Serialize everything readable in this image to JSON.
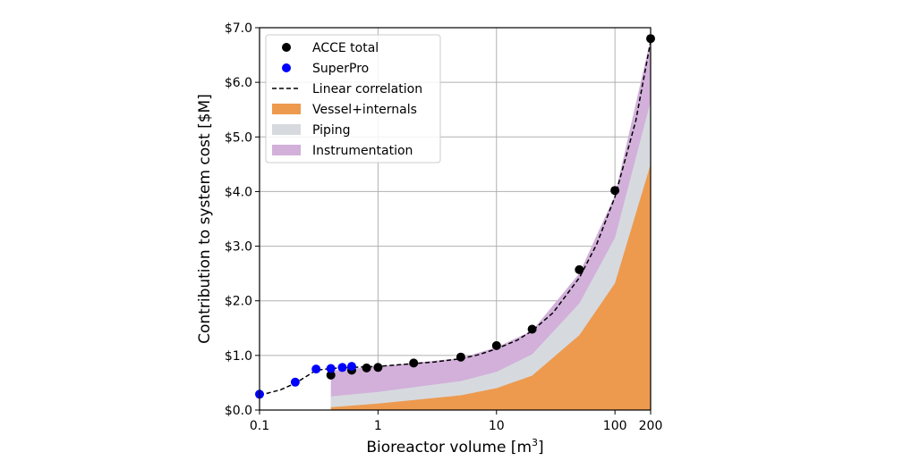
{
  "chart_data": {
    "type": "area",
    "xlabel": "Bioreactor volume [m",
    "xlabel_sup": "3",
    "xlabel_end": "]",
    "ylabel": "Contribution to system cost [$M]",
    "x_scale": "log",
    "xlim": [
      0.1,
      200
    ],
    "ylim": [
      0,
      7.0
    ],
    "x_ticks": [
      0.1,
      1,
      10,
      100,
      200
    ],
    "x_tick_labels": [
      "0.1",
      "1",
      "10",
      "100",
      "200"
    ],
    "y_ticks": [
      0,
      1,
      2,
      3,
      4,
      5,
      6,
      7
    ],
    "y_tick_labels": [
      "$0.0",
      "$1.0",
      "$2.0",
      "$3.0",
      "$4.0",
      "$5.0",
      "$6.0",
      "$7.0"
    ],
    "grid": true,
    "legend_position": "top-left",
    "series": [
      {
        "name": "ACCE total",
        "kind": "scatter",
        "color": "#000000",
        "points": [
          [
            0.4,
            0.64
          ],
          [
            0.6,
            0.73
          ],
          [
            0.8,
            0.77
          ],
          [
            1,
            0.78
          ],
          [
            2,
            0.86
          ],
          [
            5,
            0.97
          ],
          [
            10,
            1.18
          ],
          [
            20,
            1.48
          ],
          [
            50,
            2.57
          ],
          [
            100,
            4.02
          ],
          [
            200,
            6.8
          ]
        ]
      },
      {
        "name": "SuperPro",
        "kind": "scatter",
        "color": "#0000ff",
        "points": [
          [
            0.1,
            0.29
          ],
          [
            0.2,
            0.51
          ],
          [
            0.3,
            0.75
          ],
          [
            0.4,
            0.76
          ],
          [
            0.5,
            0.78
          ],
          [
            0.6,
            0.8
          ]
        ]
      },
      {
        "name": "Linear correlation",
        "kind": "line",
        "color": "#000000",
        "dashed": true,
        "points": [
          [
            0.1,
            0.27
          ],
          [
            0.15,
            0.37
          ],
          [
            0.2,
            0.49
          ],
          [
            0.25,
            0.62
          ],
          [
            0.3,
            0.73
          ],
          [
            0.4,
            0.76
          ],
          [
            0.6,
            0.78
          ],
          [
            1,
            0.8
          ],
          [
            2,
            0.85
          ],
          [
            3,
            0.88
          ],
          [
            5,
            0.94
          ],
          [
            7,
            1.01
          ],
          [
            10,
            1.12
          ],
          [
            15,
            1.28
          ],
          [
            20,
            1.45
          ],
          [
            30,
            1.78
          ],
          [
            50,
            2.42
          ],
          [
            70,
            3.03
          ],
          [
            100,
            3.9
          ],
          [
            150,
            5.3
          ],
          [
            200,
            6.75
          ]
        ]
      },
      {
        "name": "Vessel+internals",
        "kind": "area",
        "color": "#ed9a4f",
        "x": [
          0.4,
          1,
          5,
          10,
          20,
          50,
          100,
          200
        ],
        "y": [
          0.05,
          0.12,
          0.27,
          0.4,
          0.63,
          1.37,
          2.32,
          4.5
        ]
      },
      {
        "name": "Piping",
        "kind": "area",
        "color": "#d6dadf",
        "x": [
          0.4,
          1,
          5,
          10,
          20,
          50,
          100,
          200
        ],
        "y": [
          0.25,
          0.33,
          0.53,
          0.7,
          1.02,
          1.95,
          3.15,
          5.65
        ]
      },
      {
        "name": "Instrumentation",
        "kind": "area",
        "color": "#d2b0da",
        "x": [
          0.4,
          1,
          5,
          10,
          20,
          50,
          100,
          200
        ],
        "y": [
          0.72,
          0.8,
          0.95,
          1.15,
          1.45,
          2.5,
          3.93,
          6.8
        ]
      }
    ]
  }
}
